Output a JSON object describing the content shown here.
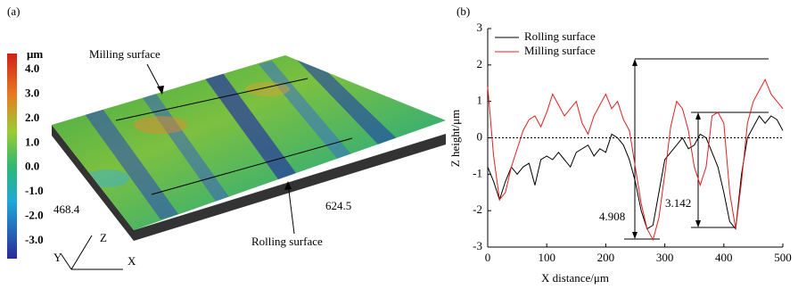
{
  "panel_a": {
    "label": "(a)",
    "unit": "μm",
    "colorbar_ticks": [
      "4.0",
      "3.0",
      "2.0",
      "1.0",
      "0.0",
      "-1.0",
      "-2.0",
      "-3.0"
    ],
    "milling_label": "Milling surface",
    "rolling_label": "Rolling surface",
    "width_label": "468.4",
    "length_label": "624.5",
    "axis_z": "Z",
    "axis_y": "Y",
    "axis_x": "X"
  },
  "chart_data": {
    "type": "line",
    "title": "(b)",
    "xlabel": "X distance/μm",
    "ylabel": "Z height/μm",
    "x": [
      0,
      10,
      20,
      30,
      40,
      50,
      60,
      70,
      80,
      90,
      100,
      110,
      120,
      130,
      140,
      150,
      160,
      170,
      180,
      190,
      200,
      210,
      220,
      230,
      240,
      250,
      260,
      270,
      280,
      290,
      300,
      310,
      320,
      330,
      340,
      350,
      360,
      370,
      380,
      390,
      400,
      410,
      420,
      430,
      440,
      450,
      460,
      470,
      480,
      490,
      500
    ],
    "series": [
      {
        "name": "Rolling surface",
        "color": "#000000",
        "values": [
          -0.8,
          -1.2,
          -1.7,
          -1.2,
          -0.8,
          -1.0,
          -0.8,
          -0.7,
          -1.3,
          -0.6,
          -0.5,
          -0.6,
          -0.4,
          -0.6,
          -0.8,
          -0.4,
          -0.3,
          -0.2,
          -0.5,
          -0.3,
          -0.4,
          0.1,
          0.0,
          -0.2,
          -0.6,
          -1.2,
          -2.0,
          -2.5,
          -2.4,
          -1.5,
          -0.6,
          -0.4,
          -0.2,
          0.0,
          -0.3,
          -0.2,
          0.1,
          0.0,
          -0.4,
          -0.8,
          -1.5,
          -2.3,
          -2.5,
          -1.0,
          0.0,
          0.3,
          0.6,
          0.4,
          0.6,
          0.5,
          0.2
        ]
      },
      {
        "name": "Milling surface",
        "color": "#e02020",
        "values": [
          1.4,
          -0.5,
          -1.7,
          -1.5,
          -0.8,
          -0.3,
          0.2,
          0.5,
          0.6,
          0.3,
          0.7,
          1.2,
          0.9,
          0.6,
          0.8,
          1.0,
          0.4,
          0.1,
          0.6,
          0.9,
          1.2,
          0.8,
          1.0,
          0.5,
          0.2,
          -0.8,
          -1.8,
          -2.5,
          -2.8,
          -2.2,
          -1.0,
          0.3,
          1.0,
          0.8,
          0.2,
          -0.8,
          -1.3,
          -0.8,
          0.6,
          0.7,
          0.4,
          -1.5,
          -2.5,
          -1.2,
          0.4,
          1.0,
          1.3,
          1.6,
          1.2,
          1.0,
          0.8
        ]
      }
    ],
    "annotations": [
      "4.908",
      "3.142"
    ],
    "xlim": [
      0,
      500
    ],
    "xticks": [
      0,
      100,
      200,
      300,
      400,
      500
    ],
    "ylim": [
      -3,
      3
    ],
    "yticks": [
      -3,
      -2,
      -1,
      0,
      1,
      2,
      3
    ],
    "zero_line": true,
    "legend": "upper left"
  }
}
